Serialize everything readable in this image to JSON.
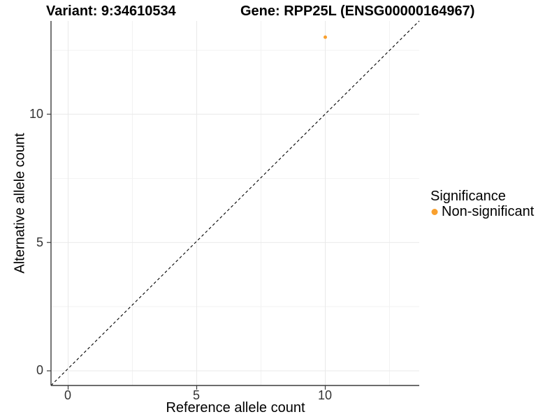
{
  "header": {
    "variant_title": "Variant: 9:34610534",
    "gene_title": "Gene: RPP25L (ENSG00000164967)"
  },
  "axes": {
    "x_label": "Reference allele count",
    "y_label": "Alternative allele count",
    "x_tick_labels": [
      "0",
      "5",
      "10"
    ],
    "y_tick_labels": [
      "0",
      "5",
      "10"
    ]
  },
  "legend": {
    "title": "Significance",
    "items": [
      {
        "label": "Non-significant",
        "color": "#F9A02E"
      }
    ]
  },
  "chart_data": {
    "type": "scatter",
    "title": "Variant: 9:34610534 — Gene: RPP25L (ENSG00000164967)",
    "xlabel": "Reference allele count",
    "ylabel": "Alternative allele count",
    "xlim": [
      -0.65,
      13.65
    ],
    "ylim": [
      -0.65,
      13.65
    ],
    "x_ticks": [
      0,
      5,
      10
    ],
    "y_ticks": [
      0,
      5,
      10
    ],
    "minor_grid_positions": [
      2.5,
      7.5,
      12.5
    ],
    "grid": true,
    "legend_position": "right",
    "series": [
      {
        "name": "Non-significant",
        "color": "#F9A02E",
        "points": [
          [
            10,
            13
          ]
        ]
      }
    ],
    "reference_line": {
      "kind": "identity",
      "equation": "y = x",
      "style": "dashed",
      "color": "#000000"
    }
  }
}
